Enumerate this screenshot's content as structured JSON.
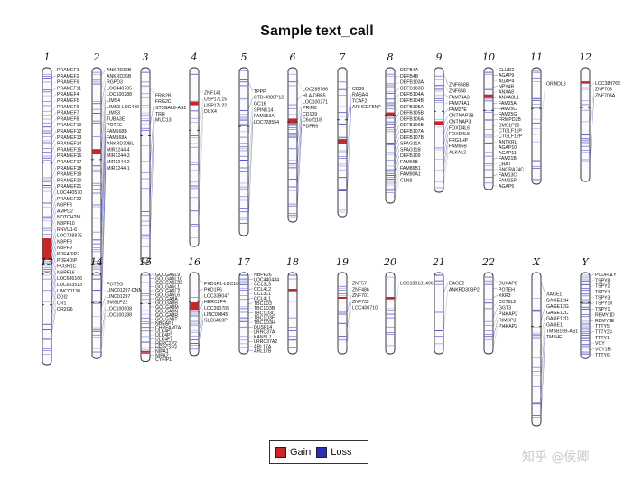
{
  "chart_data": {
    "type": "ideogram",
    "title": "Sample text_call",
    "legend": [
      {
        "label": "Gain",
        "color": "#c62828"
      },
      {
        "label": "Loss",
        "color": "#2b2fb8"
      }
    ],
    "legend_position": "bottom-center",
    "chromosomes": [
      {
        "name": "1",
        "length": 1.0,
        "gain": [
          [
            0.63,
            0.71
          ]
        ],
        "loss_intensity": 0.45,
        "genes": [
          "PRAMEF1",
          "PRAMEF2",
          "PRAMEF9",
          "PRAMEF11",
          "PRAMEF4",
          "PRAMEF5",
          "PRAMEF6",
          "PRAMEF7",
          "PRAMEF8",
          "PRAMEF10",
          "PRAMEF12",
          "PRAMEF13",
          "PRAMEF14",
          "PRAMEF15",
          "PRAMEF16",
          "PRAMEF17",
          "PRAMEF18",
          "PRAMEF19",
          "PRAMEF20",
          "PRAMEF21",
          "LOC440570",
          "PRAMEF22",
          "NBPF3",
          "AMPD2",
          "NOTCH2NL",
          "NBPF10",
          "RNVU1-6",
          "LOC728875",
          "NBPF8",
          "NBPF9",
          "PDE4DIP2",
          "PDE4DIP",
          "FCGR1C",
          "NBPF16",
          "LOC645166",
          "LOC653513",
          "LINC01138",
          "DDI2",
          "CR1",
          "OR2G6"
        ]
      },
      {
        "name": "2",
        "length": 0.97,
        "gain": [
          [
            0.31,
            0.33
          ]
        ],
        "loss_intensity": 0.3,
        "genes": [
          "ANKRD36B",
          "ANKRD36B",
          "RGPD3",
          "LOC440705",
          "LOC100288",
          "LIMS4",
          "LIMS3-LOC440",
          "LIMS3",
          "TUBA3E",
          "POTEE",
          "FAM168B",
          "FAM168A",
          "ANKRD30BL",
          "MIR1244-4",
          "MIR1244-3",
          "MIR1244-2",
          "MIR1244-1"
        ]
      },
      {
        "name": "3",
        "length": 0.72,
        "gain": [],
        "loss_intensity": 0.25,
        "genes": [
          "FRG2B",
          "FRG2C",
          "ST3GAL6-AS1",
          "TRH",
          "MUC13"
        ]
      },
      {
        "name": "4",
        "length": 0.66,
        "gain": [
          [
            0.19,
            0.21
          ]
        ],
        "loss_intensity": 0.25,
        "genes": [
          "ZNF141",
          "USP17L15",
          "USP17L22",
          "DUX4"
        ]
      },
      {
        "name": "5",
        "length": 0.62,
        "gain": [],
        "loss_intensity": 0.3,
        "genes": [
          "TPPP",
          "CTD-3080P12",
          "GC16",
          "SPINK14",
          "FAM153A",
          "LOC728554"
        ]
      },
      {
        "name": "6",
        "length": 0.57,
        "gain": [
          [
            0.33,
            0.36
          ]
        ],
        "loss_intensity": 0.3,
        "genes": [
          "LOC285766",
          "HLA-DRB5",
          "LOC100271",
          "PRIM2",
          "CD109",
          "C6orf118",
          "PDPR6"
        ]
      },
      {
        "name": "7",
        "length": 0.55,
        "gain": [
          [
            0.48,
            0.51
          ]
        ],
        "loss_intensity": 0.25,
        "genes": [
          "CD36",
          "RASA4",
          "TCAF2",
          "ARHGEF5NP"
        ]
      },
      {
        "name": "8",
        "length": 0.5,
        "gain": [
          [
            0.33,
            0.36
          ]
        ],
        "loss_intensity": 0.6,
        "genes": [
          "DEFB4A",
          "DEFB4B",
          "DEFB103A",
          "DEFB103B",
          "DEFB104A",
          "DEFB104B",
          "DEFB105A",
          "DEFB105B",
          "DEFB106A",
          "DEFB106B",
          "DEFB107A",
          "DEFB107B",
          "SPAG11A",
          "SPAG11B",
          "DEFB109",
          "FAM66B",
          "FAM86B1",
          "FAM90A1",
          "CLN8"
        ]
      },
      {
        "name": "9",
        "length": 0.46,
        "gain": [
          [
            0.43,
            0.46
          ]
        ],
        "loss_intensity": 0.3,
        "genes": [
          "ZNF658B",
          "ZNF658",
          "FAM74A3",
          "FAM74A1",
          "FAM27E",
          "CNTNAP3B",
          "CNTNAP3",
          "FOXD4L6",
          "FOXD4L5",
          "FRG1HP",
          "FAM95B",
          "ALKAL2"
        ]
      },
      {
        "name": "10",
        "length": 0.45,
        "gain": [
          [
            0.22,
            0.25
          ]
        ],
        "loss_intensity": 0.35,
        "genes": [
          "GLUD2",
          "AGAP9",
          "AGAP4",
          "NPY4R",
          "ANXA8",
          "ANXA8L1",
          "FAM25A",
          "FAM25C",
          "FAM25G",
          "FRMPD2B",
          "BMS1P20",
          "CTGLF11P",
          "CTGLF12P",
          "ANTXRL",
          "AGAP10",
          "AGAP11",
          "FAM21B",
          "CHAT",
          "SNORA74C",
          "FAM13C",
          "FAM15P",
          "AGAP5"
        ]
      },
      {
        "name": "11",
        "length": 0.43,
        "gain": [],
        "loss_intensity": 0.25,
        "genes": [
          "ORMDL3"
        ]
      },
      {
        "name": "12",
        "length": 0.42,
        "gain": [
          [
            0.12,
            0.14
          ]
        ],
        "loss_intensity": 0.3,
        "genes": [
          "LOC389765",
          "ZNF705",
          "ZNF705A"
        ]
      },
      {
        "name": "13",
        "length": 0.3,
        "gain": [],
        "loss_intensity": 0.2,
        "genes": []
      },
      {
        "name": "14",
        "length": 0.28,
        "gain": [],
        "loss_intensity": 0.25,
        "genes": [
          "POTEG",
          "LINC01297-DNM",
          "LINC01297",
          "BMS1P22",
          "LOC100508",
          "LOC100288"
        ]
      },
      {
        "name": "15",
        "length": 0.29,
        "gain": [
          [
            0.88,
            0.9
          ]
        ],
        "loss_intensity": 0.4,
        "genes": [
          "GOLGA6L9",
          "GOLGA6L10",
          "GOLGA6L22",
          "GOLGA6L1",
          "GOLGA6L2",
          "GOLGA6L6",
          "GOLGA8A",
          "GOLGA8B",
          "GOLGA8M",
          "GOLGA8N",
          "GOLGA8R",
          "GOLGA8T",
          "NBEAP1",
          "CHRFAM7A",
          "ULK4P2",
          "ULK4P3",
          "ULK4P1",
          "HERC2P2",
          "HERC2P3",
          "NIPA1",
          "NIPA2",
          "CYFIP1"
        ]
      },
      {
        "name": "16",
        "length": 0.27,
        "gain": [
          [
            0.36,
            0.45
          ]
        ],
        "loss_intensity": 0.35,
        "genes": [
          "PKD1P1-LOC100",
          "PKD1P6",
          "LOC339047",
          "HERC2P4",
          "LOC390705",
          "LINC00845",
          "SLC6A10P"
        ]
      },
      {
        "name": "17",
        "length": 0.26,
        "gain": [],
        "loss_intensity": 0.6,
        "genes": [
          "NBPF26",
          "LOC440434",
          "CCL3L3",
          "CCL4L2",
          "CCL3L1",
          "CCL4L1",
          "TBC1D3",
          "TBC1D3B",
          "TBC1D3C",
          "TBC1D3F",
          "TBC1D3H",
          "DUSP14",
          "LRRC37A",
          "KANSL1",
          "LRRC37A2",
          "ARL17A",
          "ARL17B"
        ]
      },
      {
        "name": "18",
        "length": 0.25,
        "gain": [
          [
            0.2,
            0.23
          ]
        ],
        "loss_intensity": 0.3,
        "genes": []
      },
      {
        "name": "19",
        "length": 0.2,
        "gain": [
          [
            0.3,
            0.32
          ]
        ],
        "loss_intensity": 0.25,
        "genes": [
          "ZNF57",
          "ZNF486",
          "ZNF701",
          "ZNF732",
          "LOC400710"
        ]
      },
      {
        "name": "20",
        "length": 0.2,
        "gain": [
          [
            0.3,
            0.33
          ]
        ],
        "loss_intensity": 0.3,
        "genes": [
          "LOC100131496"
        ]
      },
      {
        "name": "21",
        "length": 0.16,
        "gain": [],
        "loss_intensity": 0.2,
        "genes": [
          "EAGE2",
          "ANKRD30BP2"
        ]
      },
      {
        "name": "22",
        "length": 0.16,
        "gain": [],
        "loss_intensity": 0.3,
        "genes": [
          "DUXAP8",
          "POTEH",
          "XKR3",
          "CCT8L2",
          "GGT3",
          "PI4KAP2",
          "RIMBP3",
          "PI4KAP2"
        ]
      },
      {
        "name": "X",
        "length": 0.5,
        "gain": [],
        "loss_intensity": 0.3,
        "genes": [
          "XAGE1",
          "GAGE12H",
          "GAGE12G",
          "GAGE12C",
          "GAGE12D",
          "GAGE1",
          "TMSB15B-AS1",
          "TMLHE"
        ]
      },
      {
        "name": "Y",
        "length": 0.28,
        "gain": [],
        "loss_intensity": 0.7,
        "genes": [
          "PCDH11Y",
          "TSPY8",
          "TSPY2",
          "TSPY4",
          "TSPY3",
          "TSPY10",
          "TSPY1",
          "RBMY1D",
          "RBMY1E",
          "TTTY5",
          "TTTY23",
          "TTTY1",
          "VCY",
          "VCY1B",
          "TTTY6"
        ]
      }
    ]
  }
}
